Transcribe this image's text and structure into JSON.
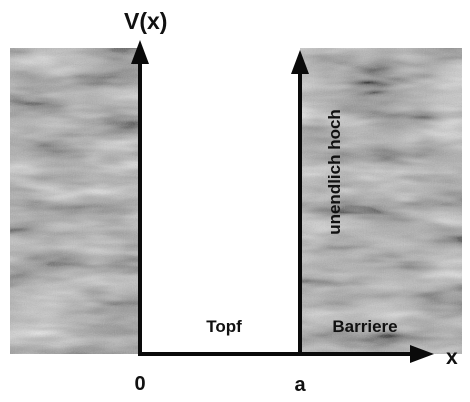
{
  "labels": {
    "y_axis": "V(x)",
    "x_axis": "x",
    "origin": "0",
    "a": "a",
    "well": "Topf",
    "barrier": "Barriere",
    "height_note": "unendlich hoch"
  },
  "colors": {
    "barrier_base": "#a3a3a3",
    "barrier_dark": "#5e5e5e",
    "barrier_light": "#dcdcdc",
    "axis": "#0a0a0a",
    "text": "#111111"
  }
}
